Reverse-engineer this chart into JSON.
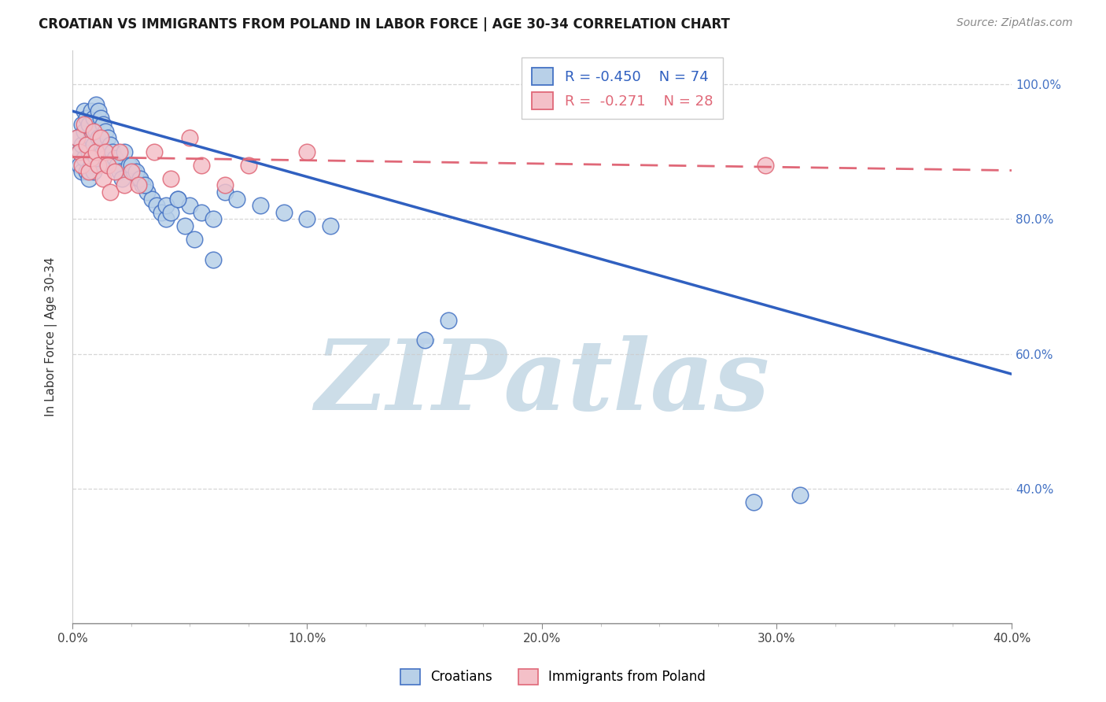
{
  "title": "CROATIAN VS IMMIGRANTS FROM POLAND IN LABOR FORCE | AGE 30-34 CORRELATION CHART",
  "source": "Source: ZipAtlas.com",
  "ylabel": "In Labor Force | Age 30-34",
  "xlim": [
    0.0,
    0.4
  ],
  "ylim": [
    0.2,
    1.05
  ],
  "xticks": [
    0.0,
    0.1,
    0.2,
    0.3,
    0.4
  ],
  "yticks": [
    0.4,
    0.6,
    0.8,
    1.0
  ],
  "xtick_labels": [
    "0.0%",
    "10.0%",
    "20.0%",
    "30.0%",
    "40.0%"
  ],
  "ytick_labels_right": [
    "40.0%",
    "60.0%",
    "80.0%",
    "100.0%"
  ],
  "blue_fill": "#b8d0e8",
  "blue_edge": "#4472c4",
  "blue_line": "#3060c0",
  "pink_fill": "#f4c0c8",
  "pink_edge": "#e06878",
  "pink_line": "#e06878",
  "watermark_color": "#ccdde8",
  "grid_color": "#cccccc",
  "title_color": "#1a1a1a",
  "right_axis_color": "#4472c4",
  "cr_x": [
    0.002,
    0.003,
    0.003,
    0.004,
    0.004,
    0.004,
    0.005,
    0.005,
    0.005,
    0.006,
    0.006,
    0.006,
    0.007,
    0.007,
    0.007,
    0.008,
    0.008,
    0.008,
    0.009,
    0.009,
    0.009,
    0.01,
    0.01,
    0.01,
    0.011,
    0.011,
    0.012,
    0.012,
    0.013,
    0.013,
    0.014,
    0.014,
    0.015,
    0.015,
    0.016,
    0.017,
    0.018,
    0.019,
    0.02,
    0.021,
    0.022,
    0.024,
    0.026,
    0.028,
    0.03,
    0.032,
    0.034,
    0.036,
    0.038,
    0.04,
    0.045,
    0.05,
    0.055,
    0.06,
    0.065,
    0.07,
    0.08,
    0.09,
    0.1,
    0.11,
    0.025,
    0.027,
    0.029,
    0.031,
    0.04,
    0.042,
    0.045,
    0.048,
    0.052,
    0.06,
    0.15,
    0.16,
    0.29,
    0.31
  ],
  "cr_y": [
    0.92,
    0.9,
    0.88,
    0.94,
    0.91,
    0.87,
    0.96,
    0.93,
    0.89,
    0.95,
    0.91,
    0.87,
    0.94,
    0.9,
    0.86,
    0.96,
    0.92,
    0.88,
    0.95,
    0.91,
    0.87,
    0.97,
    0.93,
    0.89,
    0.96,
    0.92,
    0.95,
    0.91,
    0.94,
    0.9,
    0.93,
    0.89,
    0.92,
    0.88,
    0.91,
    0.9,
    0.89,
    0.88,
    0.87,
    0.86,
    0.9,
    0.88,
    0.87,
    0.86,
    0.85,
    0.84,
    0.83,
    0.82,
    0.81,
    0.8,
    0.83,
    0.82,
    0.81,
    0.8,
    0.84,
    0.83,
    0.82,
    0.81,
    0.8,
    0.79,
    0.88,
    0.87,
    0.86,
    0.85,
    0.82,
    0.81,
    0.83,
    0.79,
    0.77,
    0.74,
    0.62,
    0.65,
    0.38,
    0.39
  ],
  "po_x": [
    0.002,
    0.003,
    0.004,
    0.005,
    0.006,
    0.007,
    0.008,
    0.009,
    0.01,
    0.011,
    0.012,
    0.013,
    0.014,
    0.015,
    0.016,
    0.018,
    0.02,
    0.022,
    0.025,
    0.028,
    0.035,
    0.042,
    0.05,
    0.055,
    0.065,
    0.075,
    0.1,
    0.295
  ],
  "po_y": [
    0.92,
    0.9,
    0.88,
    0.94,
    0.91,
    0.87,
    0.89,
    0.93,
    0.9,
    0.88,
    0.92,
    0.86,
    0.9,
    0.88,
    0.84,
    0.87,
    0.9,
    0.85,
    0.87,
    0.85,
    0.9,
    0.86,
    0.92,
    0.88,
    0.85,
    0.88,
    0.9,
    0.88
  ],
  "cr_line_x0": 0.0,
  "cr_line_y0": 0.96,
  "cr_line_x1": 0.4,
  "cr_line_y1": 0.57,
  "po_line_x0": 0.0,
  "po_line_y0": 0.892,
  "po_line_x1": 0.4,
  "po_line_y1": 0.872
}
